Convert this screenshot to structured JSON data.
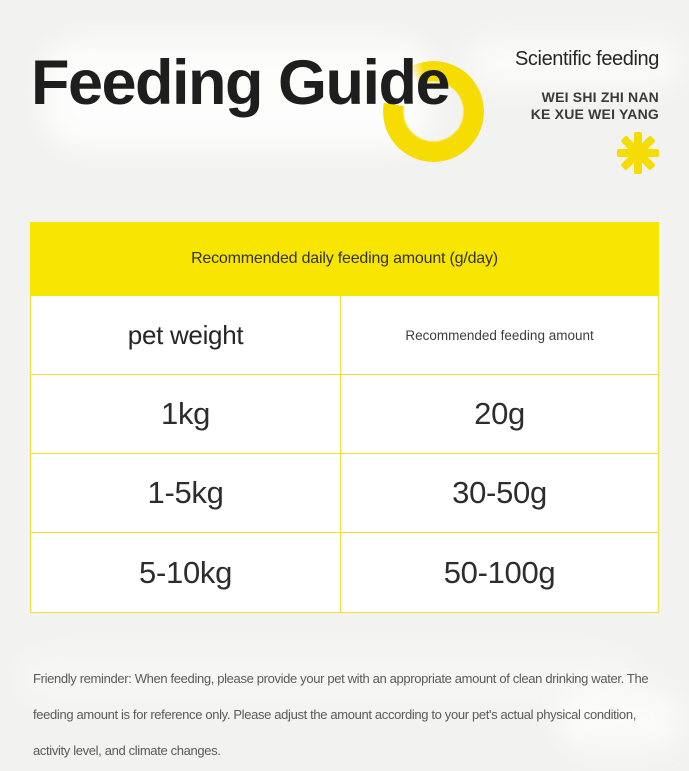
{
  "page": {
    "background_color": "#f2f2f0",
    "accent_yellow": "#f8e600",
    "border_yellow": "#f2dc3a",
    "text_dark": "#1e1e1e"
  },
  "header": {
    "title": "Feeding Guide",
    "subtitle": "Scientific feeding",
    "pinyin_line1": "WEI SHI ZHI NAN",
    "pinyin_line2": "KE XUE WEI YANG",
    "decorations": [
      "ring-decoration",
      "asterisk-icon"
    ]
  },
  "table": {
    "caption": "Recommended daily feeding amount (g/day)",
    "columns": [
      "pet weight",
      "Recommended feeding amount"
    ],
    "rows": [
      {
        "weight": "1kg",
        "amount": "20g"
      },
      {
        "weight": "1-5kg",
        "amount": "30-50g"
      },
      {
        "weight": "5-10kg",
        "amount": "50-100g"
      }
    ]
  },
  "footer": {
    "note": "Friendly reminder: When feeding, please provide your pet with an appropriate amount of clean drinking water. The feeding amount is for reference only. Please adjust the amount according to your pet's actual physical condition, activity level, and climate changes."
  }
}
